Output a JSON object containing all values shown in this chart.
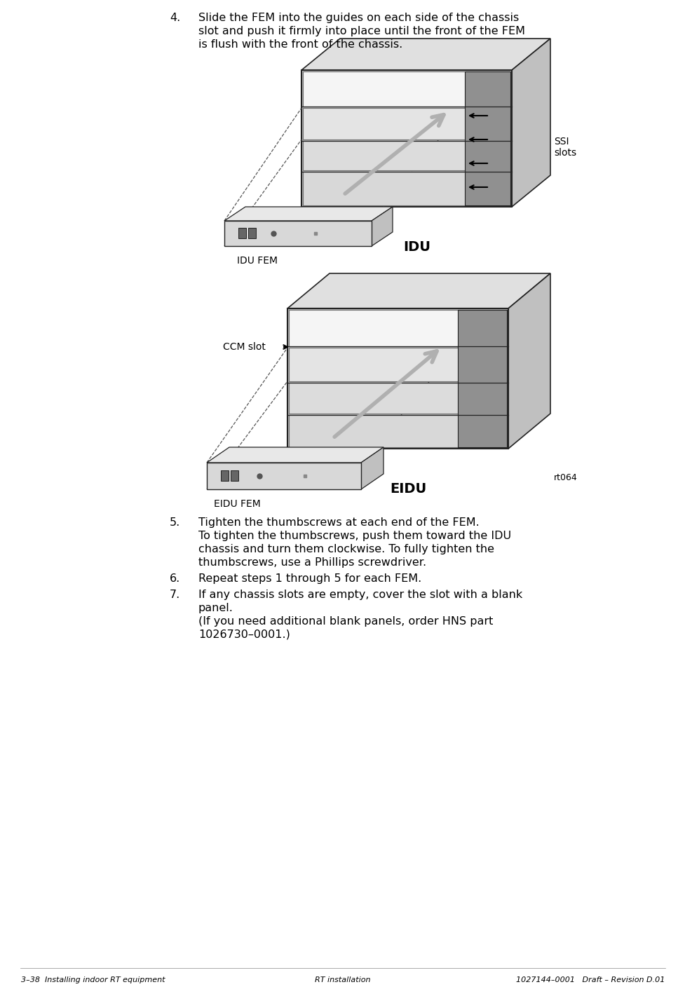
{
  "bg_color": "#ffffff",
  "text_color": "#000000",
  "footer_left": "3–38  Installing indoor RT equipment",
  "footer_center": "RT installation",
  "footer_right": "1027144–0001   Draft – Revision D.01",
  "label_idu_fem": "IDU FEM",
  "label_idu": "IDU",
  "label_ssi_slots": "SSI\nslots",
  "label_ccm_slot": "CCM slot",
  "label_eidu_fem": "EIDU FEM",
  "label_eidu": "EIDU",
  "label_rt064": "rt064",
  "step4_num": "4.",
  "step4_lines": [
    "Slide the FEM into the guides on each side of the chassis",
    "slot and push it firmly into place until the front of the FEM",
    "is flush with the front of the chassis."
  ],
  "step5_num": "5.",
  "step5_line": "Tighten the thumbscrews at each end of the FEM.",
  "step5_sub": [
    "To tighten the thumbscrews, push them toward the IDU",
    "chassis and turn them clockwise. To fully tighten the",
    "thumbscrews, use a Phillips screwdriver."
  ],
  "step6_num": "6.",
  "step6_line": "Repeat steps 1 through 5 for each FEM.",
  "step7_num": "7.",
  "step7_lines": [
    "If any chassis slots are empty, cover the slot with a blank",
    "panel."
  ],
  "step7_sub": [
    "(If you need additional blank panels, order HNS part",
    "1026730–0001.)"
  ],
  "chassis_light": "#e0e0e0",
  "chassis_mid": "#c0c0c0",
  "chassis_dark": "#909090",
  "chassis_darker": "#707070",
  "chassis_white": "#f8f8f8",
  "chassis_black": "#222222",
  "slot_white": "#f5f5f5",
  "arrow_gray": "#b0b0b0",
  "fem_color": "#d8d8d8",
  "fem_top_color": "#e8e8e8"
}
